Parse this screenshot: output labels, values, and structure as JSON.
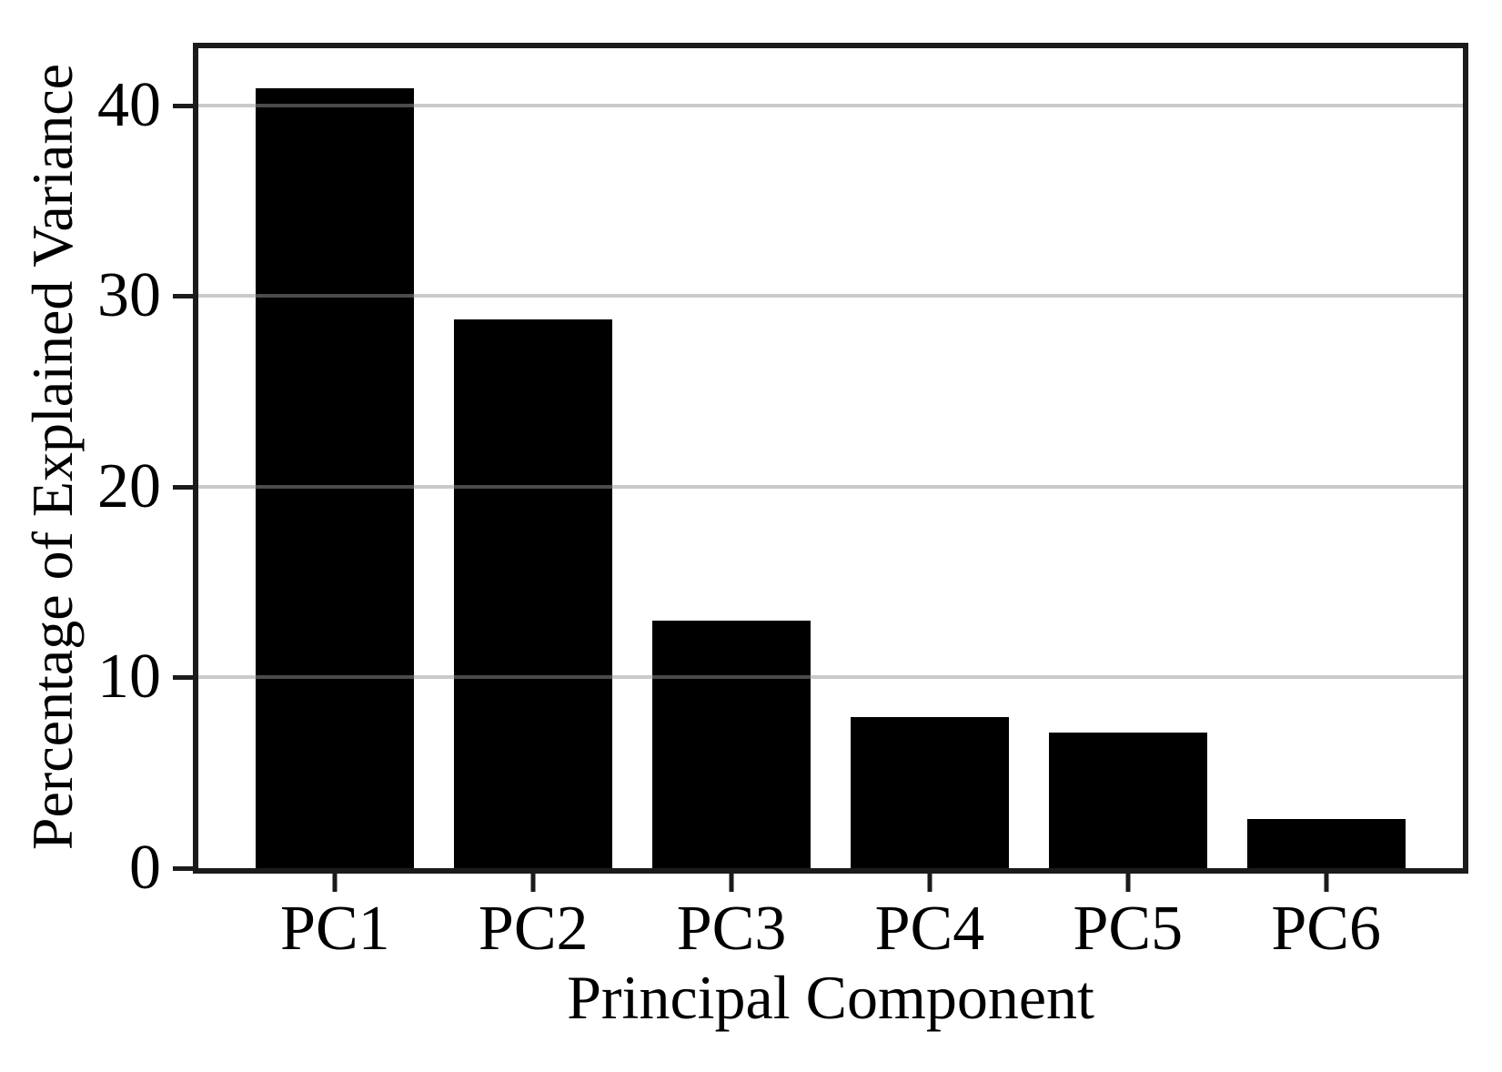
{
  "chart_data": {
    "type": "bar",
    "title": "",
    "categories": [
      "PC1",
      "PC2",
      "PC3",
      "PC4",
      "PC5",
      "PC6"
    ],
    "values": [
      40.9,
      28.8,
      13.0,
      7.9,
      7.1,
      2.6
    ],
    "xlabel": "Principal Component",
    "ylabel": "Percentage of Explained Variance",
    "ylim": [
      0,
      43
    ],
    "yticks": [
      0,
      10,
      20,
      30,
      40
    ],
    "bar_color": "#000000",
    "spine_color": "#1b1b1b",
    "gridline_color": "rgba(150,150,150,0.5)",
    "grid": "horizontal-over-bars",
    "legend": "none"
  }
}
